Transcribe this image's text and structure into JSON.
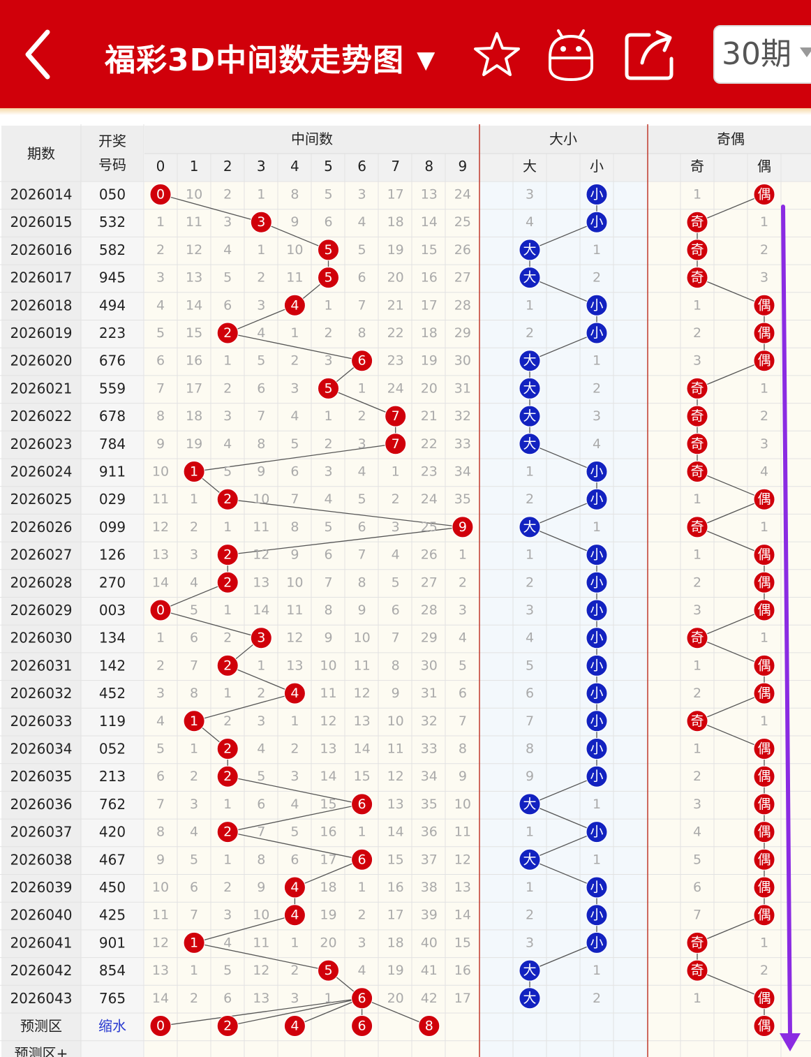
{
  "header": {
    "title": "福彩3D中间数走势图",
    "period_label": "30期",
    "dropdown_icon": "triangle-down-icon",
    "icons": [
      "back-arrow-icon",
      "star-icon",
      "robot-icon",
      "share-icon"
    ]
  },
  "colors": {
    "brand": "#d0000a",
    "ball_red": "#d0000a",
    "ball_blue": "#1222c0",
    "trend_arrow": "#8a2be2",
    "omission_text": "#aaaaaa",
    "row_bg": "#fdfbf2",
    "section_bg": "#f3f8fc"
  },
  "table": {
    "col_period": "期数",
    "col_number": [
      "开奖",
      "号码"
    ],
    "group_middle": "中间数",
    "middle_digits": [
      "0",
      "1",
      "2",
      "3",
      "4",
      "5",
      "6",
      "7",
      "8",
      "9"
    ],
    "group_bigsmall": "大小",
    "bigsmall_labels": [
      "大",
      "小"
    ],
    "group_oddeven": "奇偶",
    "oddeven_labels": [
      "奇",
      "偶"
    ],
    "rows": [
      {
        "p": "2026014",
        "n": "050",
        "m": [
          "0",
          "10",
          "2",
          "1",
          "8",
          "5",
          "3",
          "17",
          "13",
          "24"
        ],
        "bs": [
          "3",
          "小"
        ],
        "oe": [
          "1",
          "偶"
        ]
      },
      {
        "p": "2026015",
        "n": "532",
        "m": [
          "1",
          "11",
          "3",
          "3",
          "9",
          "6",
          "4",
          "18",
          "14",
          "25"
        ],
        "bs": [
          "4",
          "小"
        ],
        "oe": [
          "奇",
          "1"
        ]
      },
      {
        "p": "2026016",
        "n": "582",
        "m": [
          "2",
          "12",
          "4",
          "1",
          "10",
          "5",
          "5",
          "19",
          "15",
          "26"
        ],
        "bs": [
          "大",
          "1"
        ],
        "oe": [
          "奇",
          "2"
        ]
      },
      {
        "p": "2026017",
        "n": "945",
        "m": [
          "3",
          "13",
          "5",
          "2",
          "11",
          "5",
          "6",
          "20",
          "16",
          "27"
        ],
        "bs": [
          "大",
          "2"
        ],
        "oe": [
          "奇",
          "3"
        ]
      },
      {
        "p": "2026018",
        "n": "494",
        "m": [
          "4",
          "14",
          "6",
          "3",
          "4",
          "1",
          "7",
          "21",
          "17",
          "28"
        ],
        "bs": [
          "1",
          "小"
        ],
        "oe": [
          "1",
          "偶"
        ]
      },
      {
        "p": "2026019",
        "n": "223",
        "m": [
          "5",
          "15",
          "2",
          "4",
          "1",
          "2",
          "8",
          "22",
          "18",
          "29"
        ],
        "bs": [
          "2",
          "小"
        ],
        "oe": [
          "2",
          "偶"
        ]
      },
      {
        "p": "2026020",
        "n": "676",
        "m": [
          "6",
          "16",
          "1",
          "5",
          "2",
          "3",
          "6",
          "23",
          "19",
          "30"
        ],
        "bs": [
          "大",
          "1"
        ],
        "oe": [
          "3",
          "偶"
        ]
      },
      {
        "p": "2026021",
        "n": "559",
        "m": [
          "7",
          "17",
          "2",
          "6",
          "3",
          "5",
          "1",
          "24",
          "20",
          "31"
        ],
        "bs": [
          "大",
          "2"
        ],
        "oe": [
          "奇",
          "1"
        ]
      },
      {
        "p": "2026022",
        "n": "678",
        "m": [
          "8",
          "18",
          "3",
          "7",
          "4",
          "1",
          "2",
          "7",
          "21",
          "32"
        ],
        "bs": [
          "大",
          "3"
        ],
        "oe": [
          "奇",
          "2"
        ]
      },
      {
        "p": "2026023",
        "n": "784",
        "m": [
          "9",
          "19",
          "4",
          "8",
          "5",
          "2",
          "3",
          "7",
          "22",
          "33"
        ],
        "bs": [
          "大",
          "4"
        ],
        "oe": [
          "奇",
          "3"
        ]
      },
      {
        "p": "2026024",
        "n": "911",
        "m": [
          "10",
          "1",
          "5",
          "9",
          "6",
          "3",
          "4",
          "1",
          "23",
          "34"
        ],
        "bs": [
          "1",
          "小"
        ],
        "oe": [
          "奇",
          "4"
        ]
      },
      {
        "p": "2026025",
        "n": "029",
        "m": [
          "11",
          "1",
          "2",
          "10",
          "7",
          "4",
          "5",
          "2",
          "24",
          "35"
        ],
        "bs": [
          "2",
          "小"
        ],
        "oe": [
          "1",
          "偶"
        ]
      },
      {
        "p": "2026026",
        "n": "099",
        "m": [
          "12",
          "2",
          "1",
          "11",
          "8",
          "5",
          "6",
          "3",
          "25",
          "9"
        ],
        "bs": [
          "大",
          "1"
        ],
        "oe": [
          "奇",
          "1"
        ]
      },
      {
        "p": "2026027",
        "n": "126",
        "m": [
          "13",
          "3",
          "2",
          "12",
          "9",
          "6",
          "7",
          "4",
          "26",
          "1"
        ],
        "bs": [
          "1",
          "小"
        ],
        "oe": [
          "1",
          "偶"
        ]
      },
      {
        "p": "2026028",
        "n": "270",
        "m": [
          "14",
          "4",
          "2",
          "13",
          "10",
          "7",
          "8",
          "5",
          "27",
          "2"
        ],
        "bs": [
          "2",
          "小"
        ],
        "oe": [
          "2",
          "偶"
        ]
      },
      {
        "p": "2026029",
        "n": "003",
        "m": [
          "0",
          "5",
          "1",
          "14",
          "11",
          "8",
          "9",
          "6",
          "28",
          "3"
        ],
        "bs": [
          "3",
          "小"
        ],
        "oe": [
          "3",
          "偶"
        ]
      },
      {
        "p": "2026030",
        "n": "134",
        "m": [
          "1",
          "6",
          "2",
          "3",
          "12",
          "9",
          "10",
          "7",
          "29",
          "4"
        ],
        "bs": [
          "4",
          "小"
        ],
        "oe": [
          "奇",
          "1"
        ]
      },
      {
        "p": "2026031",
        "n": "142",
        "m": [
          "2",
          "7",
          "2",
          "1",
          "13",
          "10",
          "11",
          "8",
          "30",
          "5"
        ],
        "bs": [
          "5",
          "小"
        ],
        "oe": [
          "1",
          "偶"
        ]
      },
      {
        "p": "2026032",
        "n": "452",
        "m": [
          "3",
          "8",
          "1",
          "2",
          "4",
          "11",
          "12",
          "9",
          "31",
          "6"
        ],
        "bs": [
          "6",
          "小"
        ],
        "oe": [
          "2",
          "偶"
        ]
      },
      {
        "p": "2026033",
        "n": "119",
        "m": [
          "4",
          "1",
          "2",
          "3",
          "1",
          "12",
          "13",
          "10",
          "32",
          "7"
        ],
        "bs": [
          "7",
          "小"
        ],
        "oe": [
          "奇",
          "1"
        ]
      },
      {
        "p": "2026034",
        "n": "052",
        "m": [
          "5",
          "1",
          "2",
          "4",
          "2",
          "13",
          "14",
          "11",
          "33",
          "8"
        ],
        "bs": [
          "8",
          "小"
        ],
        "oe": [
          "1",
          "偶"
        ]
      },
      {
        "p": "2026035",
        "n": "213",
        "m": [
          "6",
          "2",
          "2",
          "5",
          "3",
          "14",
          "15",
          "12",
          "34",
          "9"
        ],
        "bs": [
          "9",
          "小"
        ],
        "oe": [
          "2",
          "偶"
        ]
      },
      {
        "p": "2026036",
        "n": "762",
        "m": [
          "7",
          "3",
          "1",
          "6",
          "4",
          "15",
          "6",
          "13",
          "35",
          "10"
        ],
        "bs": [
          "大",
          "1"
        ],
        "oe": [
          "3",
          "偶"
        ]
      },
      {
        "p": "2026037",
        "n": "420",
        "m": [
          "8",
          "4",
          "2",
          "7",
          "5",
          "16",
          "1",
          "14",
          "36",
          "11"
        ],
        "bs": [
          "1",
          "小"
        ],
        "oe": [
          "4",
          "偶"
        ]
      },
      {
        "p": "2026038",
        "n": "467",
        "m": [
          "9",
          "5",
          "1",
          "8",
          "6",
          "17",
          "6",
          "15",
          "37",
          "12"
        ],
        "bs": [
          "大",
          "1"
        ],
        "oe": [
          "5",
          "偶"
        ]
      },
      {
        "p": "2026039",
        "n": "450",
        "m": [
          "10",
          "6",
          "2",
          "9",
          "4",
          "18",
          "1",
          "16",
          "38",
          "13"
        ],
        "bs": [
          "1",
          "小"
        ],
        "oe": [
          "6",
          "偶"
        ]
      },
      {
        "p": "2026040",
        "n": "425",
        "m": [
          "11",
          "7",
          "3",
          "10",
          "4",
          "19",
          "2",
          "17",
          "39",
          "14"
        ],
        "bs": [
          "2",
          "小"
        ],
        "oe": [
          "7",
          "偶"
        ]
      },
      {
        "p": "2026041",
        "n": "901",
        "m": [
          "12",
          "1",
          "4",
          "11",
          "1",
          "20",
          "3",
          "18",
          "40",
          "15"
        ],
        "bs": [
          "3",
          "小"
        ],
        "oe": [
          "奇",
          "1"
        ]
      },
      {
        "p": "2026042",
        "n": "854",
        "m": [
          "13",
          "1",
          "5",
          "12",
          "2",
          "5",
          "4",
          "19",
          "41",
          "16"
        ],
        "bs": [
          "大",
          "1"
        ],
        "oe": [
          "奇",
          "2"
        ]
      },
      {
        "p": "2026043",
        "n": "765",
        "m": [
          "14",
          "2",
          "6",
          "13",
          "3",
          "1",
          "6",
          "20",
          "42",
          "17"
        ],
        "bs": [
          "大",
          "2"
        ],
        "oe": [
          "1",
          "偶"
        ]
      }
    ],
    "hits": [
      0,
      3,
      5,
      5,
      4,
      2,
      6,
      5,
      7,
      7,
      1,
      2,
      9,
      2,
      2,
      0,
      3,
      2,
      4,
      1,
      2,
      2,
      6,
      2,
      6,
      4,
      4,
      1,
      5,
      6
    ],
    "predict_label": "预测区",
    "predict_note": "缩水",
    "predict_balls": [
      "0",
      "2",
      "4",
      "6",
      "8"
    ],
    "predict_oe": "偶",
    "predict_plus_label": "预测区+"
  }
}
